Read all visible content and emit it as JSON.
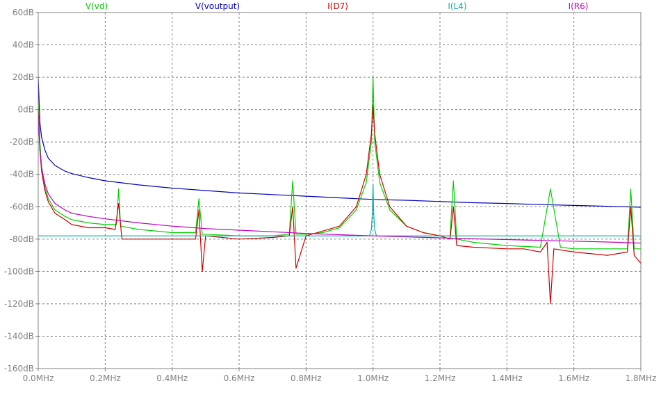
{
  "chart_data": {
    "type": "line",
    "title": "",
    "xlabel": "",
    "ylabel": "",
    "xlim": [
      0.0,
      1.8
    ],
    "ylim": [
      -160,
      60
    ],
    "x_unit": "MHz",
    "y_unit": "dB",
    "grid": true,
    "x_ticks": [
      "0.0MHz",
      "0.2MHz",
      "0.4MHz",
      "0.6MHz",
      "0.8MHz",
      "1.0MHz",
      "1.2MHz",
      "1.4MHz",
      "1.6MHz",
      "1.8MHz"
    ],
    "y_ticks": [
      "60dB",
      "40dB",
      "20dB",
      "0dB",
      "-20dB",
      "-40dB",
      "-60dB",
      "-80dB",
      "-100dB",
      "-120dB",
      "-140dB",
      "-160dB"
    ],
    "series": [
      {
        "name": "V(vd)",
        "color": "#00d000",
        "x": [
          0.0,
          0.005,
          0.01,
          0.02,
          0.03,
          0.05,
          0.08,
          0.1,
          0.15,
          0.2,
          0.234,
          0.24,
          0.246,
          0.3,
          0.4,
          0.47,
          0.48,
          0.49,
          0.5,
          0.6,
          0.7,
          0.75,
          0.76,
          0.77,
          0.8,
          0.85,
          0.9,
          0.95,
          0.98,
          0.995,
          1.0,
          1.005,
          1.02,
          1.05,
          1.1,
          1.15,
          1.2,
          1.23,
          1.24,
          1.25,
          1.3,
          1.4,
          1.5,
          1.5,
          1.53,
          1.56,
          1.6,
          1.7,
          1.76,
          1.77,
          1.78,
          1.8
        ],
        "y": [
          5,
          -20,
          -35,
          -48,
          -55,
          -62,
          -66,
          -68,
          -70,
          -71,
          -71,
          -49,
          -72,
          -74,
          -76,
          -76,
          -55,
          -77,
          -77,
          -78,
          -78,
          -77,
          -44,
          -77,
          -77,
          -76,
          -73,
          -62,
          -45,
          -20,
          20,
          -20,
          -45,
          -62,
          -72,
          -76,
          -78,
          -78,
          -44,
          -80,
          -82,
          -84,
          -85,
          -85,
          -49,
          -85,
          -86,
          -86,
          -86,
          -49,
          -86,
          -86
        ]
      },
      {
        "name": "V(voutput)",
        "color": "#0000c0",
        "x": [
          0.0,
          0.005,
          0.01,
          0.02,
          0.03,
          0.05,
          0.08,
          0.1,
          0.15,
          0.2,
          0.3,
          0.4,
          0.5,
          0.6,
          0.7,
          0.8,
          0.9,
          1.0,
          1.1,
          1.2,
          1.3,
          1.4,
          1.5,
          1.6,
          1.7,
          1.8
        ],
        "y": [
          20,
          -8,
          -17,
          -25,
          -30,
          -34.5,
          -38,
          -39.5,
          -42,
          -44,
          -46.5,
          -48.5,
          -50,
          -51.5,
          -52.5,
          -53.5,
          -54.5,
          -55.5,
          -56,
          -56.8,
          -57.5,
          -58,
          -58.7,
          -59.2,
          -59.7,
          -60.3
        ]
      },
      {
        "name": "I(D7)",
        "color": "#d00000",
        "x": [
          0.0,
          0.005,
          0.01,
          0.02,
          0.03,
          0.05,
          0.08,
          0.1,
          0.15,
          0.2,
          0.23,
          0.24,
          0.25,
          0.3,
          0.4,
          0.47,
          0.48,
          0.49,
          0.5,
          0.6,
          0.7,
          0.75,
          0.76,
          0.77,
          0.8,
          0.85,
          0.9,
          0.95,
          0.98,
          0.995,
          1.0,
          1.005,
          1.02,
          1.05,
          1.1,
          1.15,
          1.2,
          1.23,
          1.24,
          1.25,
          1.3,
          1.4,
          1.45,
          1.5,
          1.52,
          1.53,
          1.54,
          1.6,
          1.7,
          1.76,
          1.77,
          1.78,
          1.8
        ],
        "y": [
          0,
          -25,
          -38,
          -50,
          -57,
          -64,
          -68,
          -71,
          -73,
          -73,
          -74,
          -58,
          -80,
          -80,
          -80,
          -80,
          -62,
          -100,
          -78,
          -80,
          -79,
          -78,
          -60,
          -98,
          -78,
          -75,
          -72,
          -60,
          -40,
          -15,
          2,
          -15,
          -40,
          -60,
          -72,
          -76,
          -78,
          -80,
          -60,
          -84,
          -85,
          -86,
          -86,
          -88,
          -82,
          -120,
          -86,
          -88,
          -90,
          -88,
          -60,
          -90,
          -95
        ]
      },
      {
        "name": "I(L4)",
        "color": "#00b0b0",
        "x": [
          0.0,
          0.99,
          0.995,
          0.998,
          1.0,
          1.002,
          1.005,
          1.01,
          1.8
        ],
        "y": [
          -78,
          -78,
          -74,
          -64,
          -46,
          -64,
          -74,
          -78,
          -78
        ]
      },
      {
        "name": "I(R6)",
        "color": "#c000c0",
        "x": [
          0.0,
          0.005,
          0.01,
          0.02,
          0.03,
          0.05,
          0.08,
          0.1,
          0.15,
          0.2,
          0.3,
          0.4,
          0.5,
          0.6,
          0.7,
          0.8,
          0.9,
          1.0,
          1.1,
          1.2,
          1.3,
          1.4,
          1.5,
          1.6,
          1.7,
          1.8
        ],
        "y": [
          -5,
          -25,
          -36,
          -46,
          -52,
          -58,
          -62,
          -64,
          -66,
          -67.5,
          -70,
          -72,
          -73.5,
          -74.5,
          -75.5,
          -76.5,
          -77.3,
          -78,
          -78.6,
          -79.2,
          -79.8,
          -80.3,
          -80.8,
          -81.3,
          -81.8,
          -82.5
        ]
      }
    ]
  }
}
